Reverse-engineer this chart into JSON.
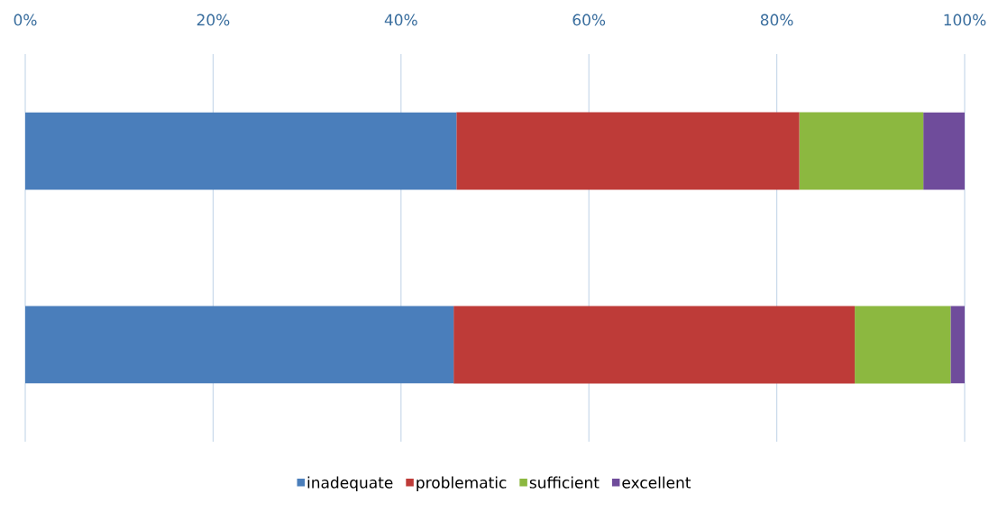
{
  "chart_data": {
    "type": "bar",
    "orientation": "horizontal",
    "stacked": true,
    "categories": [
      null,
      null
    ],
    "series": [
      {
        "name": "inadequate",
        "color": "#4a7ebb",
        "values": [
          45.9,
          45.6
        ]
      },
      {
        "name": "problematic",
        "color": "#be3b38",
        "values": [
          36.5,
          42.7
        ]
      },
      {
        "name": "sufficient",
        "color": "#8cb840",
        "values": [
          13.2,
          10.2
        ]
      },
      {
        "name": "excellent",
        "color": "#6f4c9b",
        "values": [
          4.4,
          1.5
        ]
      }
    ],
    "xlim": [
      0,
      100
    ],
    "xticks": [
      {
        "value": 0,
        "label": "0%"
      },
      {
        "value": 20,
        "label": "20%"
      },
      {
        "value": 40,
        "label": "40%"
      },
      {
        "value": 60,
        "label": "60%"
      },
      {
        "value": 80,
        "label": "80%"
      },
      {
        "value": 100,
        "label": "100%"
      }
    ],
    "grid": "x",
    "legend": "bottom",
    "tick_labels": "x"
  }
}
